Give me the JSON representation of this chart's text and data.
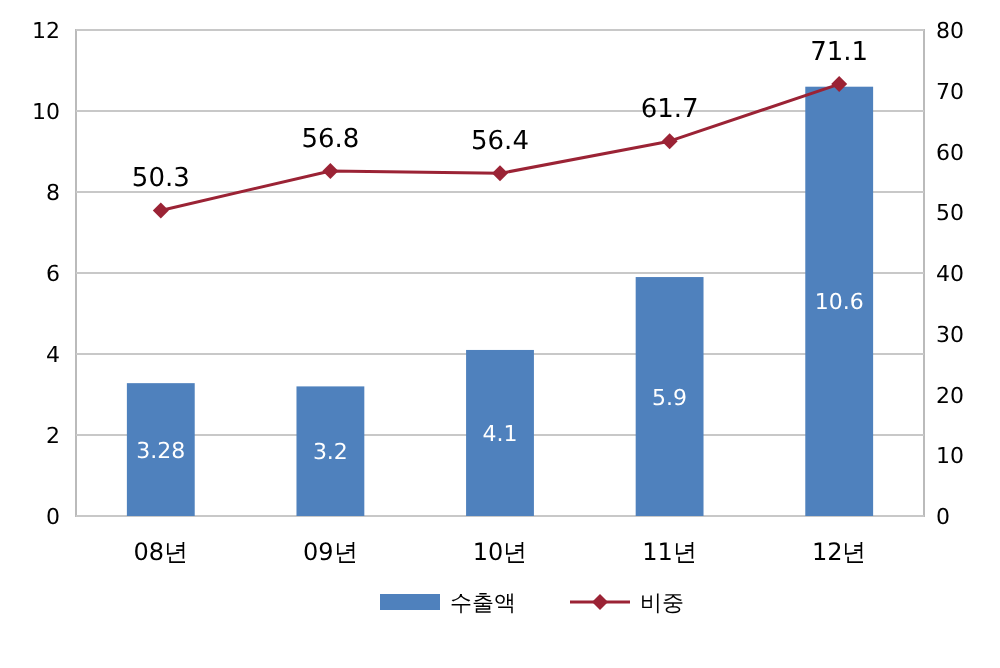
{
  "chart_data": {
    "type": "bar",
    "categories": [
      "08년",
      "09년",
      "10년",
      "11년",
      "12년"
    ],
    "series": [
      {
        "name": "수출액",
        "color": "#4f81bd",
        "values": [
          3.28,
          3.2,
          4.1,
          5.9,
          10.6
        ]
      },
      {
        "name": "비중",
        "type": "line",
        "axis": "y2",
        "color": "#9b2335",
        "values": [
          50.3,
          56.8,
          56.4,
          61.7,
          71.1
        ]
      }
    ],
    "ylim": [
      0,
      12
    ],
    "yticks": [
      0,
      2,
      4,
      6,
      8,
      10,
      12
    ],
    "y2lim": [
      0,
      80
    ],
    "y2ticks": [
      0,
      10,
      20,
      30,
      40,
      50,
      60,
      70,
      80
    ],
    "grid": "y",
    "legend": "bottom",
    "marker": "diamond",
    "data_labels": true
  }
}
